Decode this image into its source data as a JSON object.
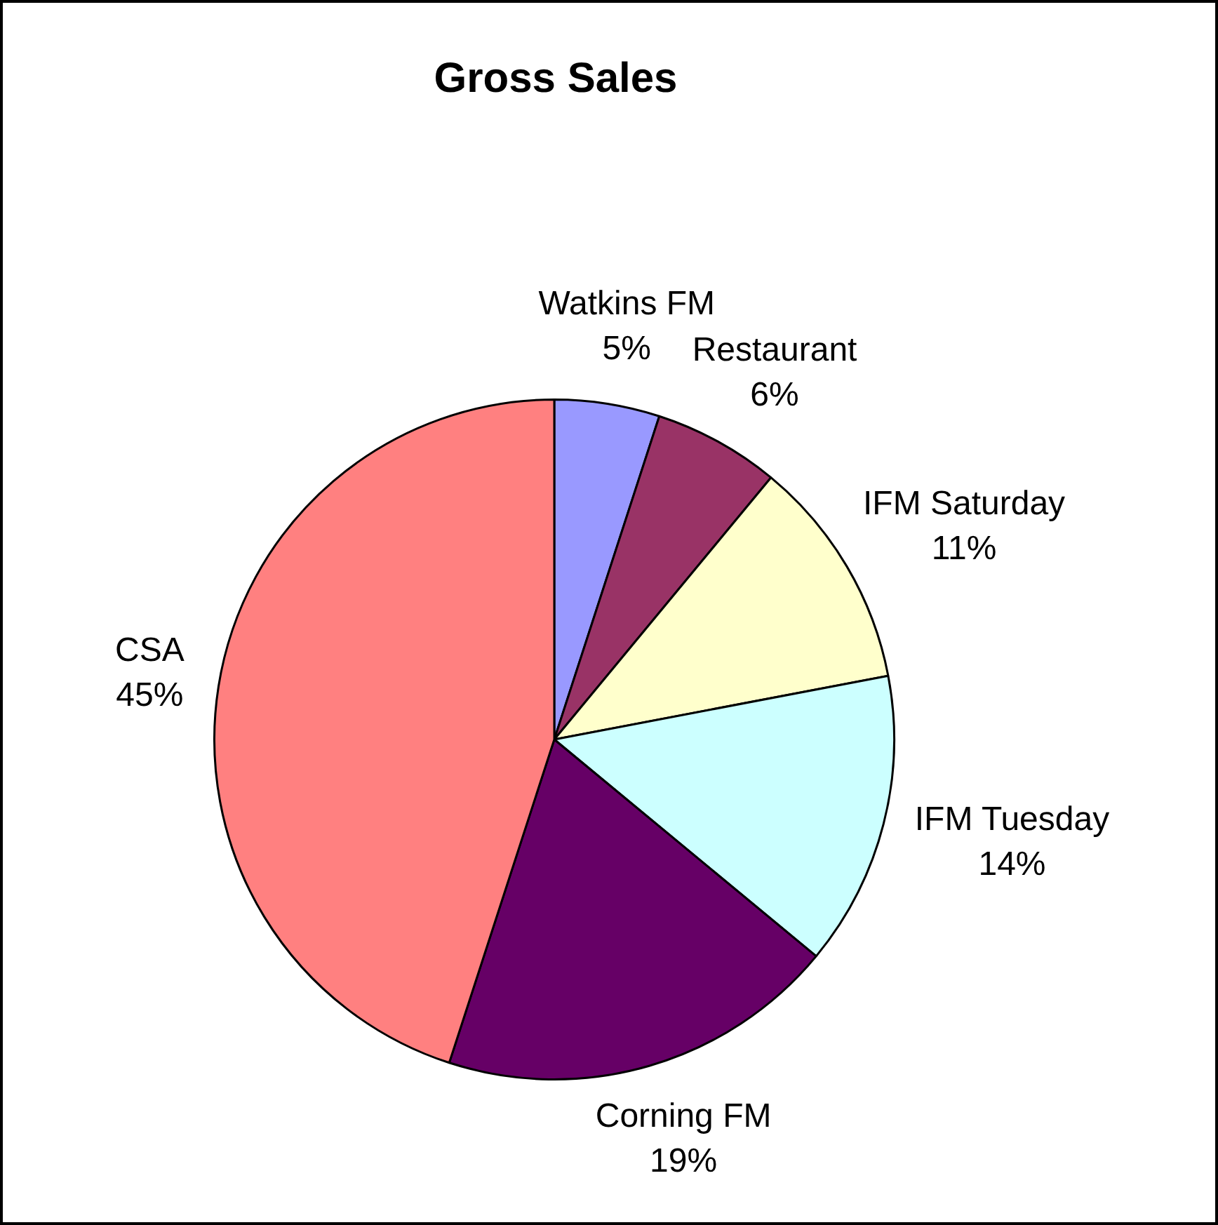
{
  "chart_data": {
    "type": "pie",
    "title": "Gross Sales",
    "categories": [
      "Watkins FM",
      "Restaurant",
      "IFM Saturday",
      "IFM Tuesday",
      "Corning FM",
      "CSA"
    ],
    "values": [
      5,
      6,
      11,
      14,
      19,
      45
    ],
    "value_labels": [
      "5%",
      "6%",
      "11%",
      "14%",
      "19%",
      "45%"
    ],
    "colors": [
      "#9999ff",
      "#993366",
      "#ffffcc",
      "#ccffff",
      "#660066",
      "#ff8080"
    ],
    "legend": false
  }
}
